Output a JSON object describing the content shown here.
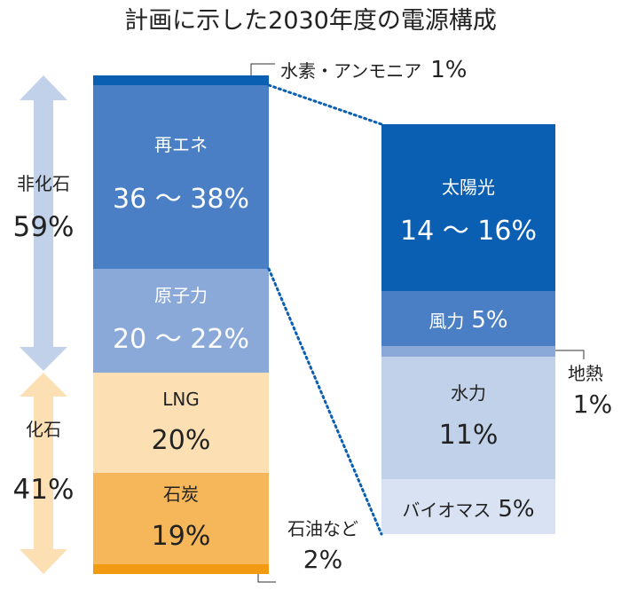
{
  "chart_data": {
    "type": "stacked-bar",
    "title": "計画に示した2030年度の電源構成",
    "unit": "%",
    "bars": [
      {
        "segments": [
          {
            "name": "水素・アンモニア",
            "value_label": "1%",
            "value": 1,
            "color": "#0b5fb2"
          },
          {
            "name": "再エネ",
            "value_label": "36 ～ 38%",
            "range": [
              36,
              38
            ],
            "color": "#4a7fc6"
          },
          {
            "name": "原子力",
            "value_label": "20 ～ 22%",
            "range": [
              20,
              22
            ],
            "color": "#8aa8d8"
          },
          {
            "name": "LNG",
            "value_label": "20%",
            "value": 20,
            "color": "#fce0b4"
          },
          {
            "name": "石炭",
            "value_label": "19%",
            "value": 19,
            "color": "#f5b75a"
          },
          {
            "name": "石油など",
            "value_label": "2%",
            "value": 2,
            "color": "#f19a12"
          }
        ]
      },
      {
        "breakdown_of": "再エネ",
        "segments": [
          {
            "name": "太陽光",
            "value_label": "14 ～ 16%",
            "range": [
              14,
              16
            ],
            "color": "#0b5fb2"
          },
          {
            "name": "風力",
            "value_label": "5%",
            "value": 5,
            "color": "#4a7fc6"
          },
          {
            "name": "地熱",
            "value_label": "1%",
            "value": 1,
            "color": "#8aa8d8"
          },
          {
            "name": "水力",
            "value_label": "11%",
            "value": 11,
            "color": "#c2d1ea"
          },
          {
            "name": "バイオマス",
            "value_label": "5%",
            "value": 5,
            "color": "#d8e2f2"
          }
        ]
      }
    ],
    "groups": [
      {
        "name": "非化石",
        "value_label": "59%",
        "color": "#c2d1ea"
      },
      {
        "name": "化石",
        "value_label": "41%",
        "color": "#fce0b4"
      }
    ],
    "connector_color": "#0b5fb2"
  }
}
